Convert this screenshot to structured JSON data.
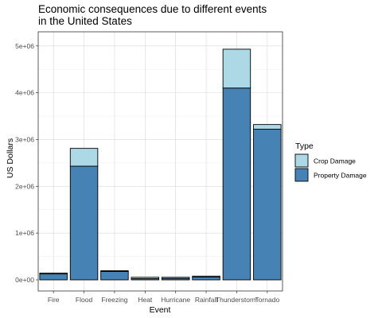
{
  "chart_data": {
    "type": "bar",
    "stacked": true,
    "title_lines": [
      "Economic consequences due to different events",
      "in the United States"
    ],
    "xlabel": "Event",
    "ylabel": "US Dollars",
    "categories": [
      "Fire",
      "Flood",
      "Freezing",
      "Heat",
      "Hurricane",
      "Rainfall",
      "Thunderstorm",
      "Tornado"
    ],
    "series": [
      {
        "name": "Property Damage",
        "color": "#4682B4",
        "values": [
          125000,
          2430000,
          180000,
          25000,
          30000,
          60000,
          4100000,
          3220000
        ]
      },
      {
        "name": "Crop Damage",
        "color": "#ADD8E6",
        "values": [
          20000,
          380000,
          15000,
          30000,
          25000,
          20000,
          830000,
          100000
        ]
      }
    ],
    "ylim": [
      0,
      5200000
    ],
    "yticks": [
      0,
      1000000,
      2000000,
      3000000,
      4000000,
      5000000
    ],
    "ytick_labels": [
      "0e+00",
      "1e+06",
      "2e+06",
      "3e+06",
      "4e+06",
      "5e+06"
    ],
    "legend": {
      "title": "Type",
      "position": "right",
      "entries": [
        {
          "label": "Crop Damage",
          "color": "#ADD8E6"
        },
        {
          "label": "Property Damage",
          "color": "#4682B4"
        }
      ]
    },
    "grid": true,
    "panel_border": true
  }
}
